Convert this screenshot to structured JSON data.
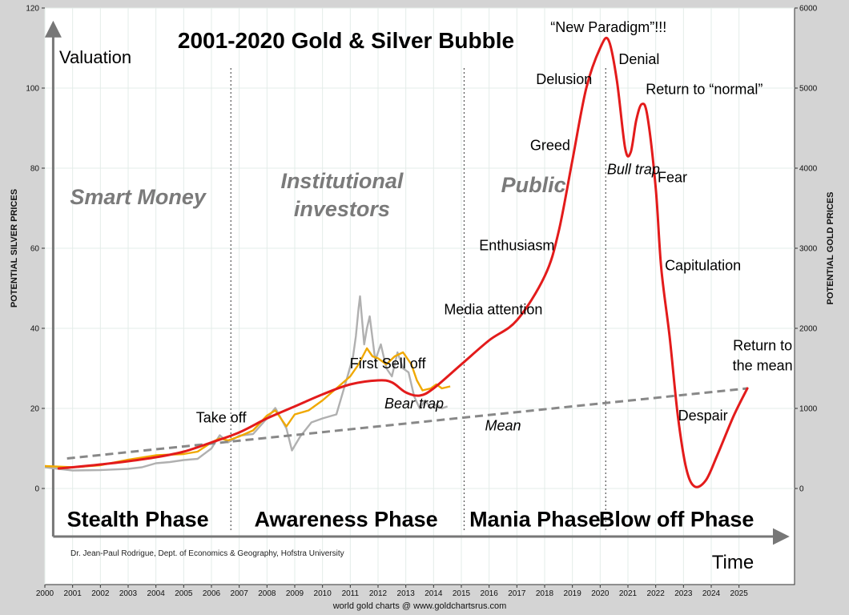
{
  "chart_data": {
    "type": "line",
    "title": "2001-2020 Gold & Silver Bubble",
    "ylabel_left": "POTENTIAL SILVER PRICES",
    "ylabel_right": "POTENTIAL GOLD PRICES",
    "axis_valuation_label": "Valuation",
    "axis_time_label": "Time",
    "credit": "Dr. Jean-Paul Rodrigue, Dept. of Economics & Geography, Hofstra University",
    "footer": "world gold charts @ www.goldchartsrus.com",
    "xlim": [
      2000,
      2027
    ],
    "ylim_left": [
      -24,
      120
    ],
    "ylim_right": [
      -1200,
      6000
    ],
    "x_ticks": [
      2000,
      2001,
      2002,
      2003,
      2004,
      2005,
      2006,
      2007,
      2008,
      2009,
      2010,
      2011,
      2012,
      2013,
      2014,
      2015,
      2016,
      2017,
      2018,
      2019,
      2020,
      2021,
      2022,
      2023,
      2024,
      2025
    ],
    "y_ticks_left": [
      0,
      20,
      40,
      60,
      80,
      100,
      120
    ],
    "y_ticks_right": [
      0,
      1000,
      2000,
      3000,
      4000,
      5000,
      6000
    ],
    "grid": true,
    "phase_dividers": [
      2006.7,
      2015.1,
      2020.2
    ],
    "phases": [
      {
        "label": "Stealth Phase",
        "x": 2003.35
      },
      {
        "label": "Awareness Phase",
        "x": 2010.85
      },
      {
        "label": "Mania Phase",
        "x": 2017.65
      },
      {
        "label": "Blow off Phase",
        "x": 2022.75
      }
    ],
    "investor_groups": [
      {
        "label": "Smart Money",
        "x": 2003.35,
        "y": 71
      },
      {
        "label": "Institutional",
        "x": 2010.7,
        "y": 75
      },
      {
        "label": "investors",
        "x": 2010.7,
        "y": 68
      },
      {
        "label": "Public",
        "x": 2017.6,
        "y": 74
      }
    ],
    "annotations": [
      {
        "text": "Take off",
        "x": 2006.35,
        "y": 16.5
      },
      {
        "text": "First Sell off",
        "x": 2012.35,
        "y": 30
      },
      {
        "text": "Bear trap",
        "x": 2013.3,
        "y": 20,
        "italic": true
      },
      {
        "text": "Mean",
        "x": 2016.5,
        "y": 14.5,
        "italic": true
      },
      {
        "text": "Media attention",
        "x": 2016.15,
        "y": 43.5
      },
      {
        "text": "Enthusiasm",
        "x": 2017.0,
        "y": 59.5
      },
      {
        "text": "Greed",
        "x": 2018.2,
        "y": 84.5
      },
      {
        "text": "Delusion",
        "x": 2018.7,
        "y": 101
      },
      {
        "text": "“New Paradigm”!!!",
        "x": 2020.3,
        "y": 114
      },
      {
        "text": "Denial",
        "x": 2021.4,
        "y": 106
      },
      {
        "text": "Return to “normal”",
        "x": 2023.75,
        "y": 98.5
      },
      {
        "text": "Bull trap",
        "x": 2021.2,
        "y": 78.5,
        "italic": true
      },
      {
        "text": "Fear",
        "x": 2022.6,
        "y": 76.5
      },
      {
        "text": "Capitulation",
        "x": 2023.7,
        "y": 54.5
      },
      {
        "text": "Return to",
        "x": 2025.85,
        "y": 34.5
      },
      {
        "text": "the mean",
        "x": 2025.85,
        "y": 29.5
      },
      {
        "text": "Despair",
        "x": 2023.7,
        "y": 17
      }
    ],
    "series": [
      {
        "name": "",
        "kind": "model_curve",
        "color": "#e31b1b",
        "x": [
          2000.5,
          2001,
          2002,
          2003,
          2004,
          2005,
          2006,
          2007,
          2008,
          2009,
          2010,
          2011,
          2012,
          2012.5,
          2013,
          2013.5,
          2014,
          2015,
          2016,
          2017,
          2018,
          2018.5,
          2019,
          2019.5,
          2020,
          2020.3,
          2020.6,
          2020.9,
          2021.1,
          2021.3,
          2021.5,
          2021.7,
          2022,
          2022.2,
          2022.5,
          2022.8,
          2023.1,
          2023.4,
          2023.8,
          2024.2,
          2024.8,
          2025.3
        ],
        "y": [
          5,
          5.3,
          6,
          6.8,
          7.8,
          9.2,
          11.5,
          14,
          17.5,
          20.5,
          23.5,
          26,
          27,
          26.5,
          24,
          23.2,
          25,
          31,
          37,
          42,
          53,
          64,
          82,
          100,
          110,
          112,
          102,
          85,
          84,
          92,
          96,
          93,
          75,
          55,
          38,
          18,
          5,
          0.5,
          2,
          8,
          18,
          25
        ]
      },
      {
        "name": "",
        "kind": "mean",
        "color": "#888888",
        "x": [
          2000.8,
          2025.3
        ],
        "y": [
          7.5,
          25
        ]
      },
      {
        "name": "",
        "kind": "silver_price",
        "color": "#b0b0b0",
        "x": [
          2000,
          2001,
          2002,
          2003,
          2003.5,
          2004,
          2004.5,
          2005,
          2005.5,
          2006,
          2006.3,
          2006.6,
          2007,
          2007.5,
          2008,
          2008.3,
          2008.7,
          2008.9,
          2009.2,
          2009.6,
          2010,
          2010.5,
          2010.9,
          2011.1,
          2011.2,
          2011.3,
          2011.35,
          2011.5,
          2011.6,
          2011.7,
          2011.9,
          2012.1,
          2012.3,
          2012.5,
          2012.7,
          2012.9,
          2013.1,
          2013.3,
          2013.5,
          2013.7,
          2013.9,
          2014.1,
          2014.3,
          2014.5
        ],
        "y": [
          5.3,
          4.5,
          4.6,
          4.9,
          5.3,
          6.3,
          6.6,
          7.1,
          7.4,
          10,
          13.3,
          11.5,
          13.2,
          13.6,
          17.5,
          20.1,
          15,
          9.5,
          13,
          16.5,
          17.5,
          18.5,
          28,
          33,
          38,
          45,
          48,
          36,
          40,
          43,
          32,
          36,
          30,
          28,
          34,
          30,
          29,
          23,
          20,
          22,
          20,
          21,
          20,
          20.5
        ]
      },
      {
        "name": "",
        "kind": "gold_price",
        "color": "#f0a800",
        "x": [
          2000,
          2001,
          2002,
          2003,
          2004,
          2005,
          2005.5,
          2006,
          2006.3,
          2006.6,
          2007,
          2007.5,
          2008,
          2008.3,
          2008.7,
          2009,
          2009.5,
          2010,
          2010.5,
          2011,
          2011.3,
          2011.6,
          2011.8,
          2012,
          2012.3,
          2012.6,
          2012.9,
          2013.2,
          2013.4,
          2013.6,
          2013.9,
          2014.1,
          2014.3,
          2014.6
        ],
        "y": [
          5.6,
          5.3,
          5.8,
          7.2,
          8.3,
          8.6,
          9.2,
          11.5,
          12.5,
          12,
          13,
          14.5,
          18.2,
          19.5,
          15.5,
          18.5,
          19.5,
          22,
          25,
          28,
          31,
          35,
          33,
          32.5,
          31,
          33,
          34,
          31,
          27,
          24.5,
          25,
          26,
          25,
          25.5
        ]
      }
    ]
  }
}
